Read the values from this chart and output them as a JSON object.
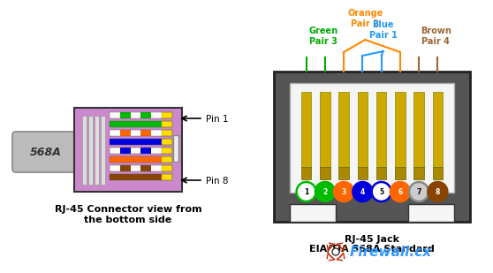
{
  "bg_color": "#ffffff",
  "title_left_line1": "RJ-45 Connector view from",
  "title_left_line2": "the bottom side",
  "title_right_line1": "RJ-45 Jack",
  "title_right_line2": "EIA/TIA 568A Standard",
  "label_568A": "568A",
  "pin_circle_colors": [
    "#ffffff",
    "#00bb00",
    "#ff6600",
    "#0000dd",
    "#ffffff",
    "#ff6600",
    "#cccccc",
    "#884400"
  ],
  "pin_circle_border": [
    "#00bb00",
    "#00bb00",
    "#ff6600",
    "#0000dd",
    "#0000dd",
    "#ff6600",
    "#888888",
    "#884400"
  ],
  "pin_numbers": [
    "1",
    "2",
    "3",
    "4",
    "5",
    "6",
    "7",
    "8"
  ],
  "connector_purple": "#cc88cc",
  "connector_purple_dark": "#aa55aa",
  "cable_gray": "#bbbbbb",
  "jack_outer": "#555555",
  "jack_inner_bg": "#f0f0f0",
  "gold_pin_color": "#ccaa00",
  "gold_pin_dark": "#aa8800",
  "wire_rows": [
    [
      "#ffffff",
      "#00bb00",
      "#ffffff",
      "#00bb00",
      "#ffffff",
      "#ffdd00"
    ],
    [
      "#00bb00",
      "#00bb00",
      "#00bb00",
      "#00bb00",
      "#00bb00",
      "#ffdd00"
    ],
    [
      "#ffffff",
      "#ff6600",
      "#ffffff",
      "#ff6600",
      "#ffffff",
      "#ffdd00"
    ],
    [
      "#0000dd",
      "#0000dd",
      "#0000dd",
      "#0000dd",
      "#0000dd",
      "#ffdd00"
    ],
    [
      "#ffffff",
      "#0000dd",
      "#ffffff",
      "#0000dd",
      "#ffffff",
      "#ffdd00"
    ],
    [
      "#ff6600",
      "#ff6600",
      "#ff6600",
      "#ff6600",
      "#ff6600",
      "#ffdd00"
    ],
    [
      "#ffffff",
      "#884400",
      "#ffffff",
      "#884400",
      "#ffffff",
      "#ffdd00"
    ],
    [
      "#884400",
      "#884400",
      "#884400",
      "#884400",
      "#884400",
      "#ffdd00"
    ]
  ],
  "green_label": "Green\nPair 3",
  "orange_label": "Orange\nPair 2",
  "blue_label": "Blue\nPair 1",
  "brown_label": "Brown\nPair 4",
  "green_color": "#00aa00",
  "orange_color": "#ff8800",
  "blue_color": "#2299ff",
  "brown_color": "#996633",
  "firewall_blue": "#3399ff",
  "firewall_red": "#cc2200"
}
